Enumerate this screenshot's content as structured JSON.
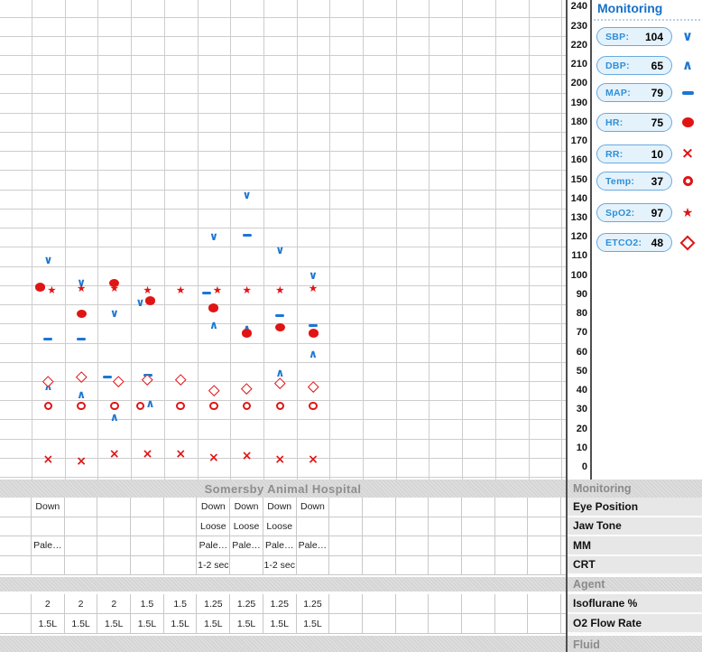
{
  "colors": {
    "blue": "#1c76d2",
    "red": "#e11414",
    "grid": "#cdcdcd",
    "title_blue": "#1670c8",
    "band_text": "#8e8e8e",
    "pill_bg": "#e4f2fc",
    "pill_border": "#6aa9dd"
  },
  "monitoring_panel": {
    "title": "Monitoring",
    "vitals": [
      {
        "name": "SBP",
        "label": "SBP:",
        "value": "104",
        "icon": "chevron-down",
        "color_key": "blue"
      },
      {
        "name": "DBP",
        "label": "DBP:",
        "value": "65",
        "icon": "chevron-up",
        "color_key": "blue"
      },
      {
        "name": "MAP",
        "label": "MAP:",
        "value": "79",
        "icon": "dash",
        "color_key": "blue"
      },
      {
        "name": "HR",
        "label": "HR:",
        "value": "75",
        "icon": "filled-circle",
        "color_key": "red"
      },
      {
        "name": "RR",
        "label": "RR:",
        "value": "10",
        "icon": "cross",
        "color_key": "red"
      },
      {
        "name": "Temp",
        "label": "Temp:",
        "value": "37",
        "icon": "open-circle",
        "color_key": "red"
      },
      {
        "name": "SpO2",
        "label": "SpO2:",
        "value": "97",
        "icon": "star",
        "color_key": "red"
      },
      {
        "name": "ETCO2",
        "label": "ETCO2:",
        "value": "48",
        "icon": "diamond",
        "color_key": "red"
      }
    ]
  },
  "chart_data": {
    "type": "scatter",
    "title": "",
    "xlabel": "",
    "ylabel": "",
    "ylim": [
      0,
      240
    ],
    "ytick_step": 10,
    "yticks": [
      240,
      230,
      220,
      210,
      200,
      190,
      180,
      170,
      160,
      150,
      140,
      130,
      120,
      110,
      100,
      90,
      80,
      70,
      60,
      50,
      40,
      30,
      20,
      10,
      0
    ],
    "x_columns": 17,
    "grid": true,
    "legend_position": "right-panel",
    "series": [
      {
        "name": "SBP",
        "symbol": "chevron-down",
        "color_key": "blue",
        "points": [
          {
            "col": 1,
            "v": 108
          },
          {
            "col": 2,
            "v": 96
          },
          {
            "col": 3,
            "v": 80
          },
          {
            "col": 4,
            "v": 86,
            "dx": -8
          },
          {
            "col": 6,
            "v": 120
          },
          {
            "col": 7,
            "v": 142
          },
          {
            "col": 8,
            "v": 113
          },
          {
            "col": 9,
            "v": 100
          }
        ]
      },
      {
        "name": "DBP",
        "symbol": "chevron-up",
        "color_key": "blue",
        "points": [
          {
            "col": 1,
            "v": 42
          },
          {
            "col": 2,
            "v": 38
          },
          {
            "col": 3,
            "v": 26
          },
          {
            "col": 4,
            "v": 33,
            "dx": 3
          },
          {
            "col": 6,
            "v": 74
          },
          {
            "col": 7,
            "v": 72
          },
          {
            "col": 8,
            "v": 49
          },
          {
            "col": 9,
            "v": 59
          }
        ]
      },
      {
        "name": "MAP",
        "symbol": "dash",
        "color_key": "blue",
        "points": [
          {
            "col": 1,
            "v": 67
          },
          {
            "col": 2,
            "v": 67
          },
          {
            "col": 3,
            "v": 47,
            "dx": -8
          },
          {
            "col": 4,
            "v": 48
          },
          {
            "col": 6,
            "v": 91,
            "dx": -8
          },
          {
            "col": 7,
            "v": 121
          },
          {
            "col": 8,
            "v": 79
          },
          {
            "col": 9,
            "v": 74
          }
        ]
      },
      {
        "name": "HR",
        "symbol": "filled-circle",
        "color_key": "red",
        "points": [
          {
            "col": 1,
            "v": 94,
            "dx": -9
          },
          {
            "col": 2,
            "v": 80
          },
          {
            "col": 3,
            "v": 96
          },
          {
            "col": 4,
            "v": 87,
            "dx": 3
          },
          {
            "col": 6,
            "v": 83
          },
          {
            "col": 7,
            "v": 70
          },
          {
            "col": 8,
            "v": 73
          },
          {
            "col": 9,
            "v": 70
          }
        ]
      },
      {
        "name": "RR",
        "symbol": "cross",
        "color_key": "red",
        "points": [
          {
            "col": 1,
            "v": 4
          },
          {
            "col": 2,
            "v": 3
          },
          {
            "col": 3,
            "v": 7
          },
          {
            "col": 4,
            "v": 7
          },
          {
            "col": 5,
            "v": 7
          },
          {
            "col": 6,
            "v": 5
          },
          {
            "col": 7,
            "v": 6
          },
          {
            "col": 8,
            "v": 4
          },
          {
            "col": 9,
            "v": 4
          }
        ]
      },
      {
        "name": "Temp",
        "symbol": "open-circle",
        "color_key": "red",
        "points": [
          {
            "col": 1,
            "v": 32
          },
          {
            "col": 2,
            "v": 32
          },
          {
            "col": 3,
            "v": 32
          },
          {
            "col": 4,
            "v": 32,
            "dx": -8
          },
          {
            "col": 5,
            "v": 32
          },
          {
            "col": 6,
            "v": 32
          },
          {
            "col": 7,
            "v": 32
          },
          {
            "col": 8,
            "v": 32
          },
          {
            "col": 9,
            "v": 32
          }
        ]
      },
      {
        "name": "SpO2",
        "symbol": "star",
        "color_key": "red",
        "points": [
          {
            "col": 1,
            "v": 92,
            "dx": 4
          },
          {
            "col": 2,
            "v": 93
          },
          {
            "col": 3,
            "v": 93
          },
          {
            "col": 4,
            "v": 92
          },
          {
            "col": 5,
            "v": 92
          },
          {
            "col": 6,
            "v": 92,
            "dx": 4
          },
          {
            "col": 7,
            "v": 92
          },
          {
            "col": 8,
            "v": 92
          },
          {
            "col": 9,
            "v": 93
          }
        ]
      },
      {
        "name": "ETCO2",
        "symbol": "diamond",
        "color_key": "red",
        "points": [
          {
            "col": 1,
            "v": 45
          },
          {
            "col": 2,
            "v": 47
          },
          {
            "col": 3,
            "v": 45,
            "dx": 4
          },
          {
            "col": 4,
            "v": 46
          },
          {
            "col": 5,
            "v": 46
          },
          {
            "col": 6,
            "v": 40
          },
          {
            "col": 7,
            "v": 41
          },
          {
            "col": 8,
            "v": 44
          },
          {
            "col": 9,
            "v": 42
          }
        ]
      }
    ]
  },
  "table": {
    "header": {
      "title": "Somersby Animal Hospital",
      "label": "Monitoring"
    },
    "rows": [
      {
        "label": "Eye Position",
        "cells": {
          "1": "Down",
          "6": "Down",
          "7": "Down",
          "8": "Down",
          "9": "Down"
        }
      },
      {
        "label": "Jaw Tone",
        "cells": {
          "6": "Loose",
          "7": "Loose",
          "8": "Loose"
        }
      },
      {
        "label": "MM",
        "cells": {
          "1": "Pale…",
          "6": "Pale…",
          "7": "Pale…",
          "8": "Pale…",
          "9": "Pale…"
        }
      },
      {
        "label": "CRT",
        "cells": {
          "6": "1-2 sec",
          "8": "1-2 sec"
        }
      }
    ],
    "agent_label": "Agent",
    "agent_rows": [
      {
        "label": "Isoflurane %",
        "cells": {
          "1": "2",
          "2": "2",
          "3": "2",
          "4": "1.5",
          "5": "1.5",
          "6": "1.25",
          "7": "1.25",
          "8": "1.25",
          "9": "1.25"
        }
      },
      {
        "label": "O2 Flow Rate",
        "cells": {
          "1": "1.5L",
          "2": "1.5L",
          "3": "1.5L",
          "4": "1.5L",
          "5": "1.5L",
          "6": "1.5L",
          "7": "1.5L",
          "8": "1.5L",
          "9": "1.5L"
        }
      }
    ],
    "fluid_label": "Fluid"
  }
}
